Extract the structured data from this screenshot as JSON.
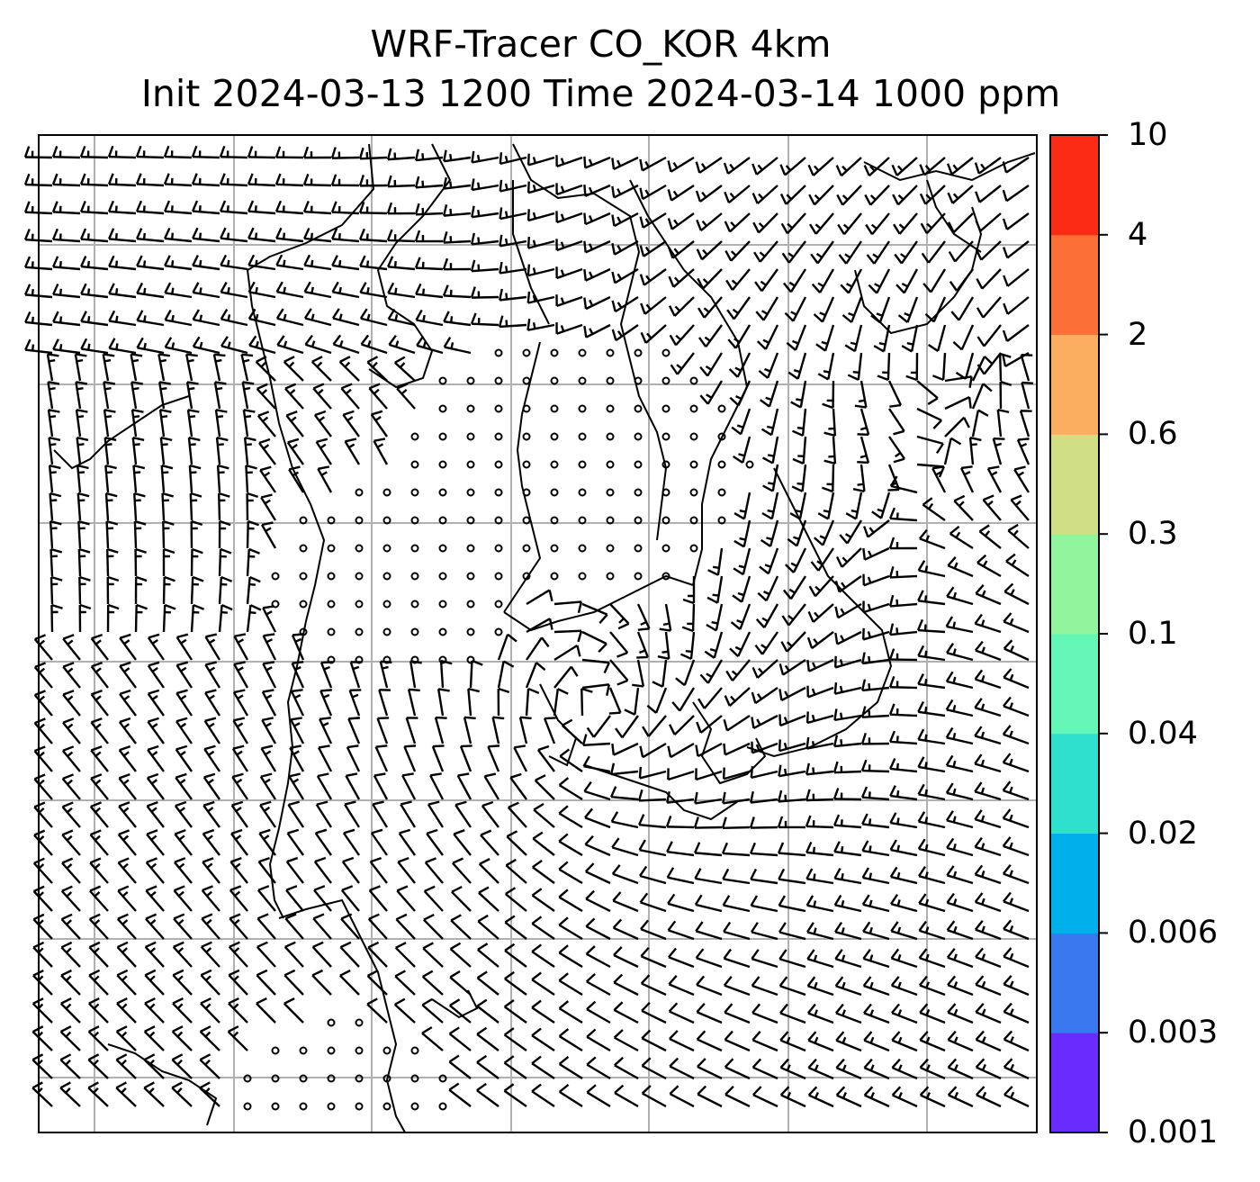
{
  "title": {
    "line1": "WRF-Tracer CO_KOR 4km",
    "line2": "Init 2024-03-13 1200 Time 2024-03-14 1000 ppm"
  },
  "map": {
    "gridline_color": "#b0b0b0",
    "coastline_color": "#000000",
    "barb_color": "#000000",
    "field_color_at_min_level": "#ffffff",
    "features": [
      "coastlines",
      "lat-lon gridlines",
      "wind barbs"
    ]
  },
  "colorbar": {
    "levels": [
      "0.001",
      "0.003",
      "0.006",
      "0.02",
      "0.04",
      "0.1",
      "0.3",
      "0.6",
      "2",
      "4",
      "10"
    ],
    "colors": [
      "#6a2bff",
      "#3a78f0",
      "#00b0ea",
      "#2fe0cf",
      "#63f6b6",
      "#90f59c",
      "#d0df83",
      "#fcae60",
      "#fc7038",
      "#fb2b16"
    ]
  }
}
